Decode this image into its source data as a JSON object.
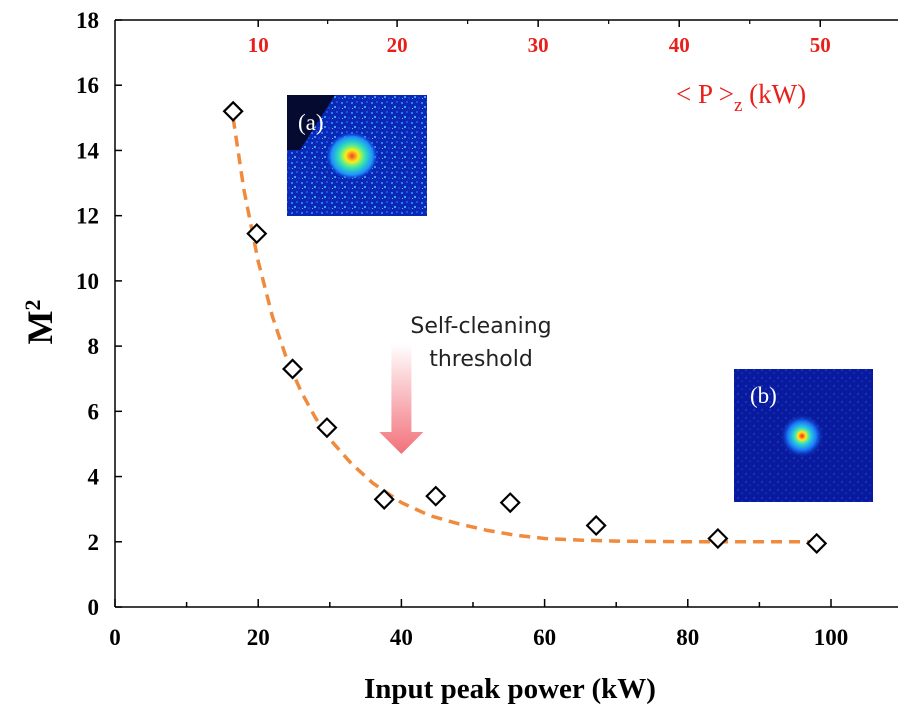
{
  "chart_data": {
    "type": "scatter",
    "xlabel": "Input peak power (kW)",
    "ylabel": "M",
    "ylabel_superscript": "2",
    "xlim": [
      0,
      110
    ],
    "ylim": [
      0,
      18
    ],
    "x_ticks": [
      0,
      20,
      40,
      60,
      80,
      100
    ],
    "y_ticks": [
      0,
      2,
      4,
      6,
      8,
      10,
      12,
      14,
      16,
      18
    ],
    "top_axis": {
      "label_main": "< P >",
      "label_sub": "z",
      "label_unit": " (kW)",
      "ticks": [
        10,
        20,
        30,
        40,
        50
      ],
      "tick_positions_bottom_units": [
        20,
        39.4,
        59.1,
        78.8,
        98.5
      ],
      "color": "#e8201b"
    },
    "series": [
      {
        "marker": "diamond-open",
        "x": [
          16.5,
          19.8,
          24.8,
          29.6,
          37.6,
          44.8,
          55.2,
          67.2,
          84.2,
          98.0
        ],
        "y": [
          15.2,
          11.45,
          7.3,
          5.5,
          3.3,
          3.4,
          3.2,
          2.5,
          2.1,
          1.95
        ]
      }
    ],
    "fit_curve": {
      "style": "dashed",
      "color": "#f08a3c",
      "x": [
        16.5,
        18,
        20,
        22,
        24,
        26,
        28,
        30,
        33,
        36,
        40,
        44,
        48,
        52,
        56,
        60,
        65,
        70,
        80,
        90,
        98
      ],
      "y": [
        15.0,
        12.8,
        10.6,
        8.9,
        7.6,
        6.6,
        5.8,
        5.15,
        4.4,
        3.8,
        3.2,
        2.8,
        2.55,
        2.35,
        2.2,
        2.1,
        2.05,
        2.02,
        2.0,
        2.0,
        2.0
      ]
    },
    "annotation": {
      "line1": "Self-cleaning",
      "line2": "threshold",
      "arrow_x": 40
    },
    "insets": [
      {
        "label": "(a)"
      },
      {
        "label": "(b)"
      }
    ]
  }
}
